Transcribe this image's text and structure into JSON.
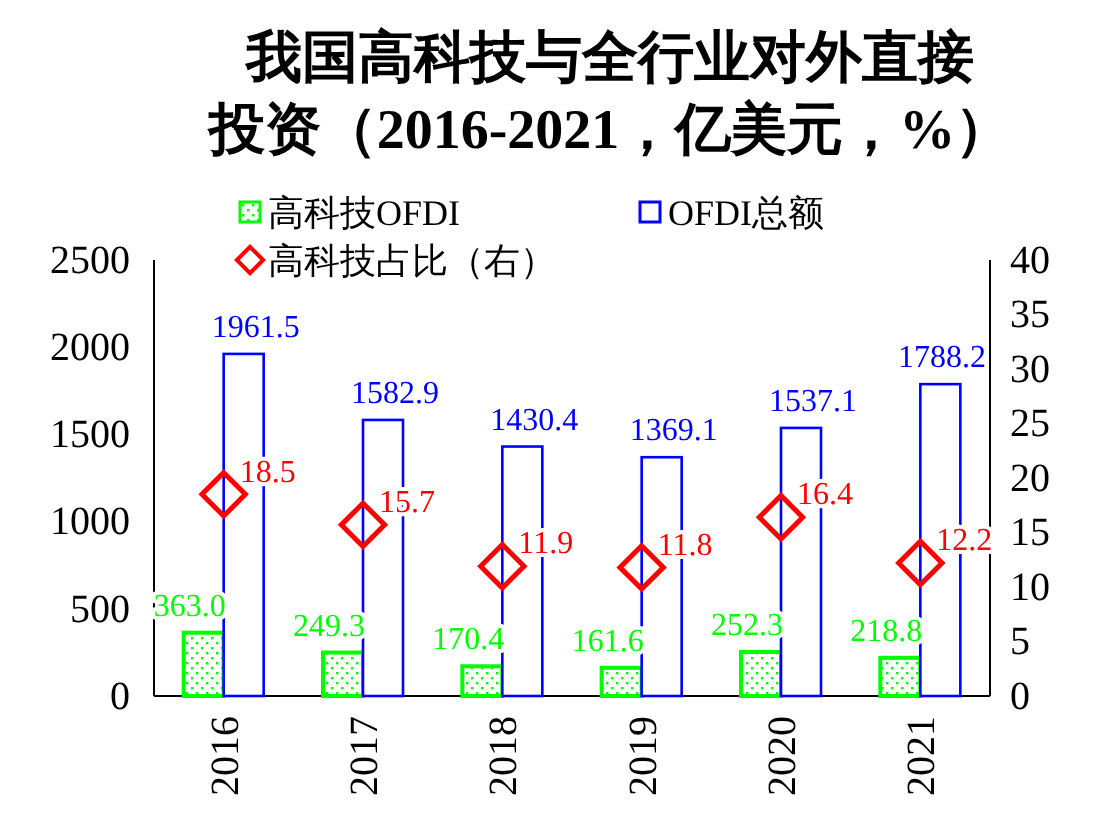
{
  "chart_data": {
    "type": "bar",
    "title": "我国高科技与全行业对外直接投资（2016-2021，亿美元，%）",
    "categories": [
      "2016",
      "2017",
      "2018",
      "2019",
      "2020",
      "2021"
    ],
    "series": [
      {
        "name": "高科技OFDI",
        "type": "bar",
        "color": "#00ff00",
        "values": [
          363.0,
          249.3,
          170.4,
          161.6,
          252.3,
          218.8
        ],
        "value_labels": [
          "363.0",
          "249.3",
          "170.4",
          "161.6",
          "252.3",
          "218.8"
        ]
      },
      {
        "name": "OFDI总额",
        "type": "bar",
        "color": "#0000ff",
        "values": [
          1961.5,
          1582.9,
          1430.4,
          1369.1,
          1537.1,
          1788.2
        ],
        "value_labels": [
          "1961.5",
          "1582.9",
          "1430.4",
          "1369.1",
          "1537.1",
          "1788.2"
        ]
      },
      {
        "name": "高科技占比（右）",
        "type": "scatter",
        "axis": "y2",
        "color": "#ff0000",
        "marker": "diamond",
        "values": [
          18.5,
          15.7,
          11.9,
          11.8,
          16.4,
          12.2
        ],
        "value_labels": [
          "18.5",
          "15.7",
          "11.9",
          "11.8",
          "16.4",
          "12.2"
        ]
      }
    ],
    "ylim": [
      0,
      2500
    ],
    "yticks": [
      0,
      500,
      1000,
      1500,
      2000,
      2500
    ],
    "y2lim": [
      0,
      40
    ],
    "y2ticks": [
      0,
      5,
      10,
      15,
      20,
      25,
      30,
      35,
      40
    ],
    "legend": "top",
    "grid": false
  }
}
